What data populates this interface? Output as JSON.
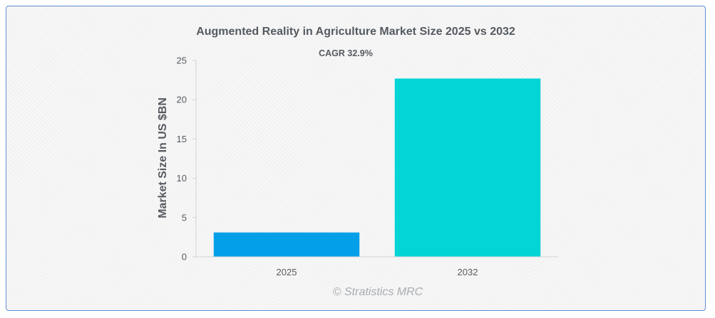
{
  "colors": {
    "bar_2025": "#039fe8",
    "bar_2032": "#03d4d6",
    "axis": "#d0d3d6",
    "text": "#555a60",
    "frame_border": "#5b8fd6"
  },
  "watermark": "© Stratistics MRC",
  "chart_data": {
    "type": "bar",
    "title": "Augmented Reality in Agriculture Market Size 2025 vs 2032",
    "annotation": "CAGR 32.9%",
    "xlabel": "",
    "ylabel": "Market Size In US $BN",
    "categories": [
      "2025",
      "2032"
    ],
    "values": [
      3.1,
      22.7
    ],
    "ylim": [
      0,
      25
    ],
    "yticks": [
      "0",
      "5",
      "10",
      "15",
      "20",
      "25"
    ],
    "grid": false,
    "legend": "none"
  }
}
